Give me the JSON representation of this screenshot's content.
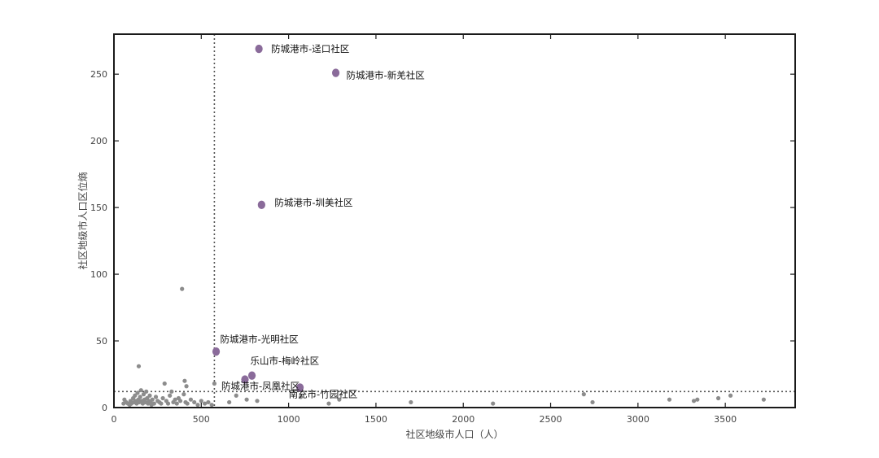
{
  "chart_data": {
    "type": "scatter",
    "xlabel": "社区地级市人口（人）",
    "ylabel": "社区地级市人口区位熵",
    "xlim": [
      0,
      3900
    ],
    "ylim": [
      0,
      280
    ],
    "xticks": [
      0,
      500,
      1000,
      1500,
      2000,
      2500,
      3000,
      3500
    ],
    "yticks": [
      0,
      50,
      100,
      150,
      200,
      250
    ],
    "grid": false,
    "reference_lines": {
      "x": 575,
      "y": 12
    },
    "colors": {
      "regular": "#8c8c8c",
      "highlight": "#8a6b9a",
      "frame": "#1a1a1a",
      "refline": "#555555"
    },
    "highlighted_points": [
      {
        "x": 830,
        "y": 269,
        "label": "防城港市-迳口社区"
      },
      {
        "x": 1270,
        "y": 251,
        "label": "防城港市-新羌社区"
      },
      {
        "x": 845,
        "y": 152,
        "label": "防城港市-圳美社区"
      },
      {
        "x": 585,
        "y": 42,
        "label": "防城港市-光明社区"
      },
      {
        "x": 790,
        "y": 24,
        "label": "乐山市-梅岭社区"
      },
      {
        "x": 750,
        "y": 21,
        "label": "防城港市-凤凰社区"
      },
      {
        "x": 1065,
        "y": 15,
        "label": "南充市-竹园社区"
      }
    ],
    "regular_points": [
      [
        55,
        3
      ],
      [
        60,
        6
      ],
      [
        70,
        4
      ],
      [
        80,
        3
      ],
      [
        90,
        2
      ],
      [
        95,
        5
      ],
      [
        100,
        3
      ],
      [
        110,
        7
      ],
      [
        115,
        4
      ],
      [
        120,
        9
      ],
      [
        125,
        5
      ],
      [
        130,
        3
      ],
      [
        135,
        11
      ],
      [
        140,
        6
      ],
      [
        142,
        31
      ],
      [
        145,
        4
      ],
      [
        150,
        8
      ],
      [
        155,
        13
      ],
      [
        160,
        5
      ],
      [
        165,
        3
      ],
      [
        170,
        10
      ],
      [
        175,
        6
      ],
      [
        180,
        4
      ],
      [
        185,
        12
      ],
      [
        190,
        7
      ],
      [
        195,
        3
      ],
      [
        200,
        5
      ],
      [
        205,
        9
      ],
      [
        210,
        4
      ],
      [
        215,
        2
      ],
      [
        220,
        6
      ],
      [
        230,
        3
      ],
      [
        240,
        8
      ],
      [
        250,
        5
      ],
      [
        260,
        4
      ],
      [
        270,
        3
      ],
      [
        280,
        7
      ],
      [
        290,
        18
      ],
      [
        300,
        5
      ],
      [
        310,
        3
      ],
      [
        320,
        9
      ],
      [
        330,
        12
      ],
      [
        340,
        4
      ],
      [
        350,
        6
      ],
      [
        360,
        3
      ],
      [
        370,
        7
      ],
      [
        380,
        5
      ],
      [
        390,
        89
      ],
      [
        400,
        10
      ],
      [
        405,
        20
      ],
      [
        410,
        4
      ],
      [
        415,
        16
      ],
      [
        420,
        3
      ],
      [
        440,
        6
      ],
      [
        460,
        4
      ],
      [
        480,
        2
      ],
      [
        500,
        5
      ],
      [
        520,
        3
      ],
      [
        540,
        4
      ],
      [
        560,
        2
      ],
      [
        575,
        18
      ],
      [
        660,
        4
      ],
      [
        700,
        9
      ],
      [
        760,
        6
      ],
      [
        820,
        5
      ],
      [
        1070,
        8
      ],
      [
        1230,
        3
      ],
      [
        1290,
        6
      ],
      [
        1700,
        4
      ],
      [
        2170,
        3
      ],
      [
        2690,
        10
      ],
      [
        2740,
        4
      ],
      [
        3180,
        6
      ],
      [
        3320,
        5
      ],
      [
        3340,
        6
      ],
      [
        3460,
        7
      ],
      [
        3530,
        9
      ],
      [
        3720,
        6
      ]
    ]
  }
}
